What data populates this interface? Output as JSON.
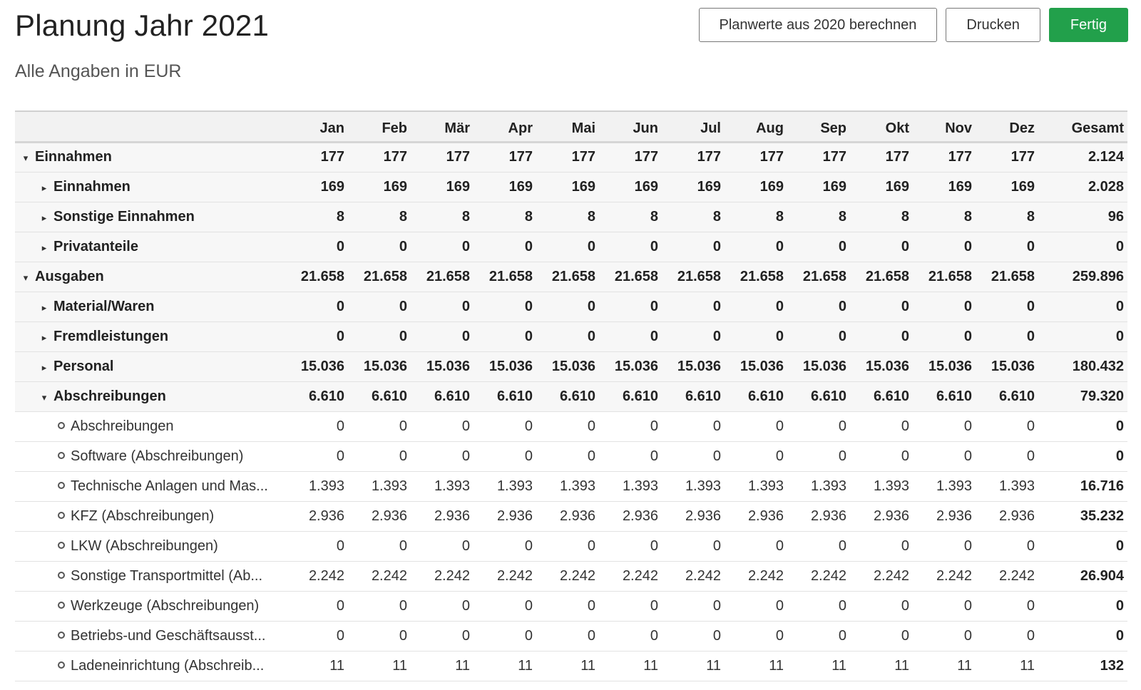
{
  "header": {
    "title": "Planung Jahr 2021",
    "subtitle": "Alle Angaben in EUR"
  },
  "toolbar": {
    "compute_label": "Planwerte aus 2020 berechnen",
    "print_label": "Drucken",
    "done_label": "Fertig",
    "done_color": "#22a04b"
  },
  "table": {
    "columns": [
      "",
      "Jan",
      "Feb",
      "Mär",
      "Apr",
      "Mai",
      "Jun",
      "Jul",
      "Aug",
      "Sep",
      "Okt",
      "Nov",
      "Dez",
      "Gesamt"
    ],
    "rows": [
      {
        "level": 0,
        "icon": "caret-down-icon",
        "label": "Einnahmen",
        "values": [
          "177",
          "177",
          "177",
          "177",
          "177",
          "177",
          "177",
          "177",
          "177",
          "177",
          "177",
          "177"
        ],
        "total": "2.124"
      },
      {
        "level": 1,
        "icon": "caret-right-icon",
        "label": "Einnahmen",
        "values": [
          "169",
          "169",
          "169",
          "169",
          "169",
          "169",
          "169",
          "169",
          "169",
          "169",
          "169",
          "169"
        ],
        "total": "2.028"
      },
      {
        "level": 1,
        "icon": "caret-right-icon",
        "label": "Sonstige Einnahmen",
        "values": [
          "8",
          "8",
          "8",
          "8",
          "8",
          "8",
          "8",
          "8",
          "8",
          "8",
          "8",
          "8"
        ],
        "total": "96"
      },
      {
        "level": 1,
        "icon": "caret-right-icon",
        "label": "Privatanteile",
        "values": [
          "0",
          "0",
          "0",
          "0",
          "0",
          "0",
          "0",
          "0",
          "0",
          "0",
          "0",
          "0"
        ],
        "total": "0"
      },
      {
        "level": 0,
        "icon": "caret-down-icon",
        "label": "Ausgaben",
        "values": [
          "21.658",
          "21.658",
          "21.658",
          "21.658",
          "21.658",
          "21.658",
          "21.658",
          "21.658",
          "21.658",
          "21.658",
          "21.658",
          "21.658"
        ],
        "total": "259.896"
      },
      {
        "level": 1,
        "icon": "caret-right-icon",
        "label": "Material/Waren",
        "values": [
          "0",
          "0",
          "0",
          "0",
          "0",
          "0",
          "0",
          "0",
          "0",
          "0",
          "0",
          "0"
        ],
        "total": "0"
      },
      {
        "level": 1,
        "icon": "caret-right-icon",
        "label": "Fremdleistungen",
        "values": [
          "0",
          "0",
          "0",
          "0",
          "0",
          "0",
          "0",
          "0",
          "0",
          "0",
          "0",
          "0"
        ],
        "total": "0"
      },
      {
        "level": 1,
        "icon": "caret-right-icon",
        "label": "Personal",
        "values": [
          "15.036",
          "15.036",
          "15.036",
          "15.036",
          "15.036",
          "15.036",
          "15.036",
          "15.036",
          "15.036",
          "15.036",
          "15.036",
          "15.036"
        ],
        "total": "180.432"
      },
      {
        "level": 1,
        "icon": "caret-down-icon",
        "label": "Abschreibungen",
        "values": [
          "6.610",
          "6.610",
          "6.610",
          "6.610",
          "6.610",
          "6.610",
          "6.610",
          "6.610",
          "6.610",
          "6.610",
          "6.610",
          "6.610"
        ],
        "total": "79.320"
      },
      {
        "level": 2,
        "icon": "circle-icon",
        "label": "Abschreibungen",
        "values": [
          "0",
          "0",
          "0",
          "0",
          "0",
          "0",
          "0",
          "0",
          "0",
          "0",
          "0",
          "0"
        ],
        "total": "0"
      },
      {
        "level": 2,
        "icon": "circle-icon",
        "label": "Software (Abschreibungen)",
        "values": [
          "0",
          "0",
          "0",
          "0",
          "0",
          "0",
          "0",
          "0",
          "0",
          "0",
          "0",
          "0"
        ],
        "total": "0"
      },
      {
        "level": 2,
        "icon": "circle-icon",
        "label": "Technische Anlagen und Mas...",
        "values": [
          "1.393",
          "1.393",
          "1.393",
          "1.393",
          "1.393",
          "1.393",
          "1.393",
          "1.393",
          "1.393",
          "1.393",
          "1.393",
          "1.393"
        ],
        "total": "16.716"
      },
      {
        "level": 2,
        "icon": "circle-icon",
        "label": "KFZ (Abschreibungen)",
        "values": [
          "2.936",
          "2.936",
          "2.936",
          "2.936",
          "2.936",
          "2.936",
          "2.936",
          "2.936",
          "2.936",
          "2.936",
          "2.936",
          "2.936"
        ],
        "total": "35.232"
      },
      {
        "level": 2,
        "icon": "circle-icon",
        "label": "LKW (Abschreibungen)",
        "values": [
          "0",
          "0",
          "0",
          "0",
          "0",
          "0",
          "0",
          "0",
          "0",
          "0",
          "0",
          "0"
        ],
        "total": "0"
      },
      {
        "level": 2,
        "icon": "circle-icon",
        "label": "Sonstige Transportmittel (Ab...",
        "values": [
          "2.242",
          "2.242",
          "2.242",
          "2.242",
          "2.242",
          "2.242",
          "2.242",
          "2.242",
          "2.242",
          "2.242",
          "2.242",
          "2.242"
        ],
        "total": "26.904"
      },
      {
        "level": 2,
        "icon": "circle-icon",
        "label": "Werkzeuge (Abschreibungen)",
        "values": [
          "0",
          "0",
          "0",
          "0",
          "0",
          "0",
          "0",
          "0",
          "0",
          "0",
          "0",
          "0"
        ],
        "total": "0"
      },
      {
        "level": 2,
        "icon": "circle-icon",
        "label": "Betriebs-und Geschäftsausst...",
        "values": [
          "0",
          "0",
          "0",
          "0",
          "0",
          "0",
          "0",
          "0",
          "0",
          "0",
          "0",
          "0"
        ],
        "total": "0"
      },
      {
        "level": 2,
        "icon": "circle-icon",
        "label": "Ladeneinrichtung (Abschreib...",
        "values": [
          "11",
          "11",
          "11",
          "11",
          "11",
          "11",
          "11",
          "11",
          "11",
          "11",
          "11",
          "11"
        ],
        "total": "132"
      }
    ]
  }
}
